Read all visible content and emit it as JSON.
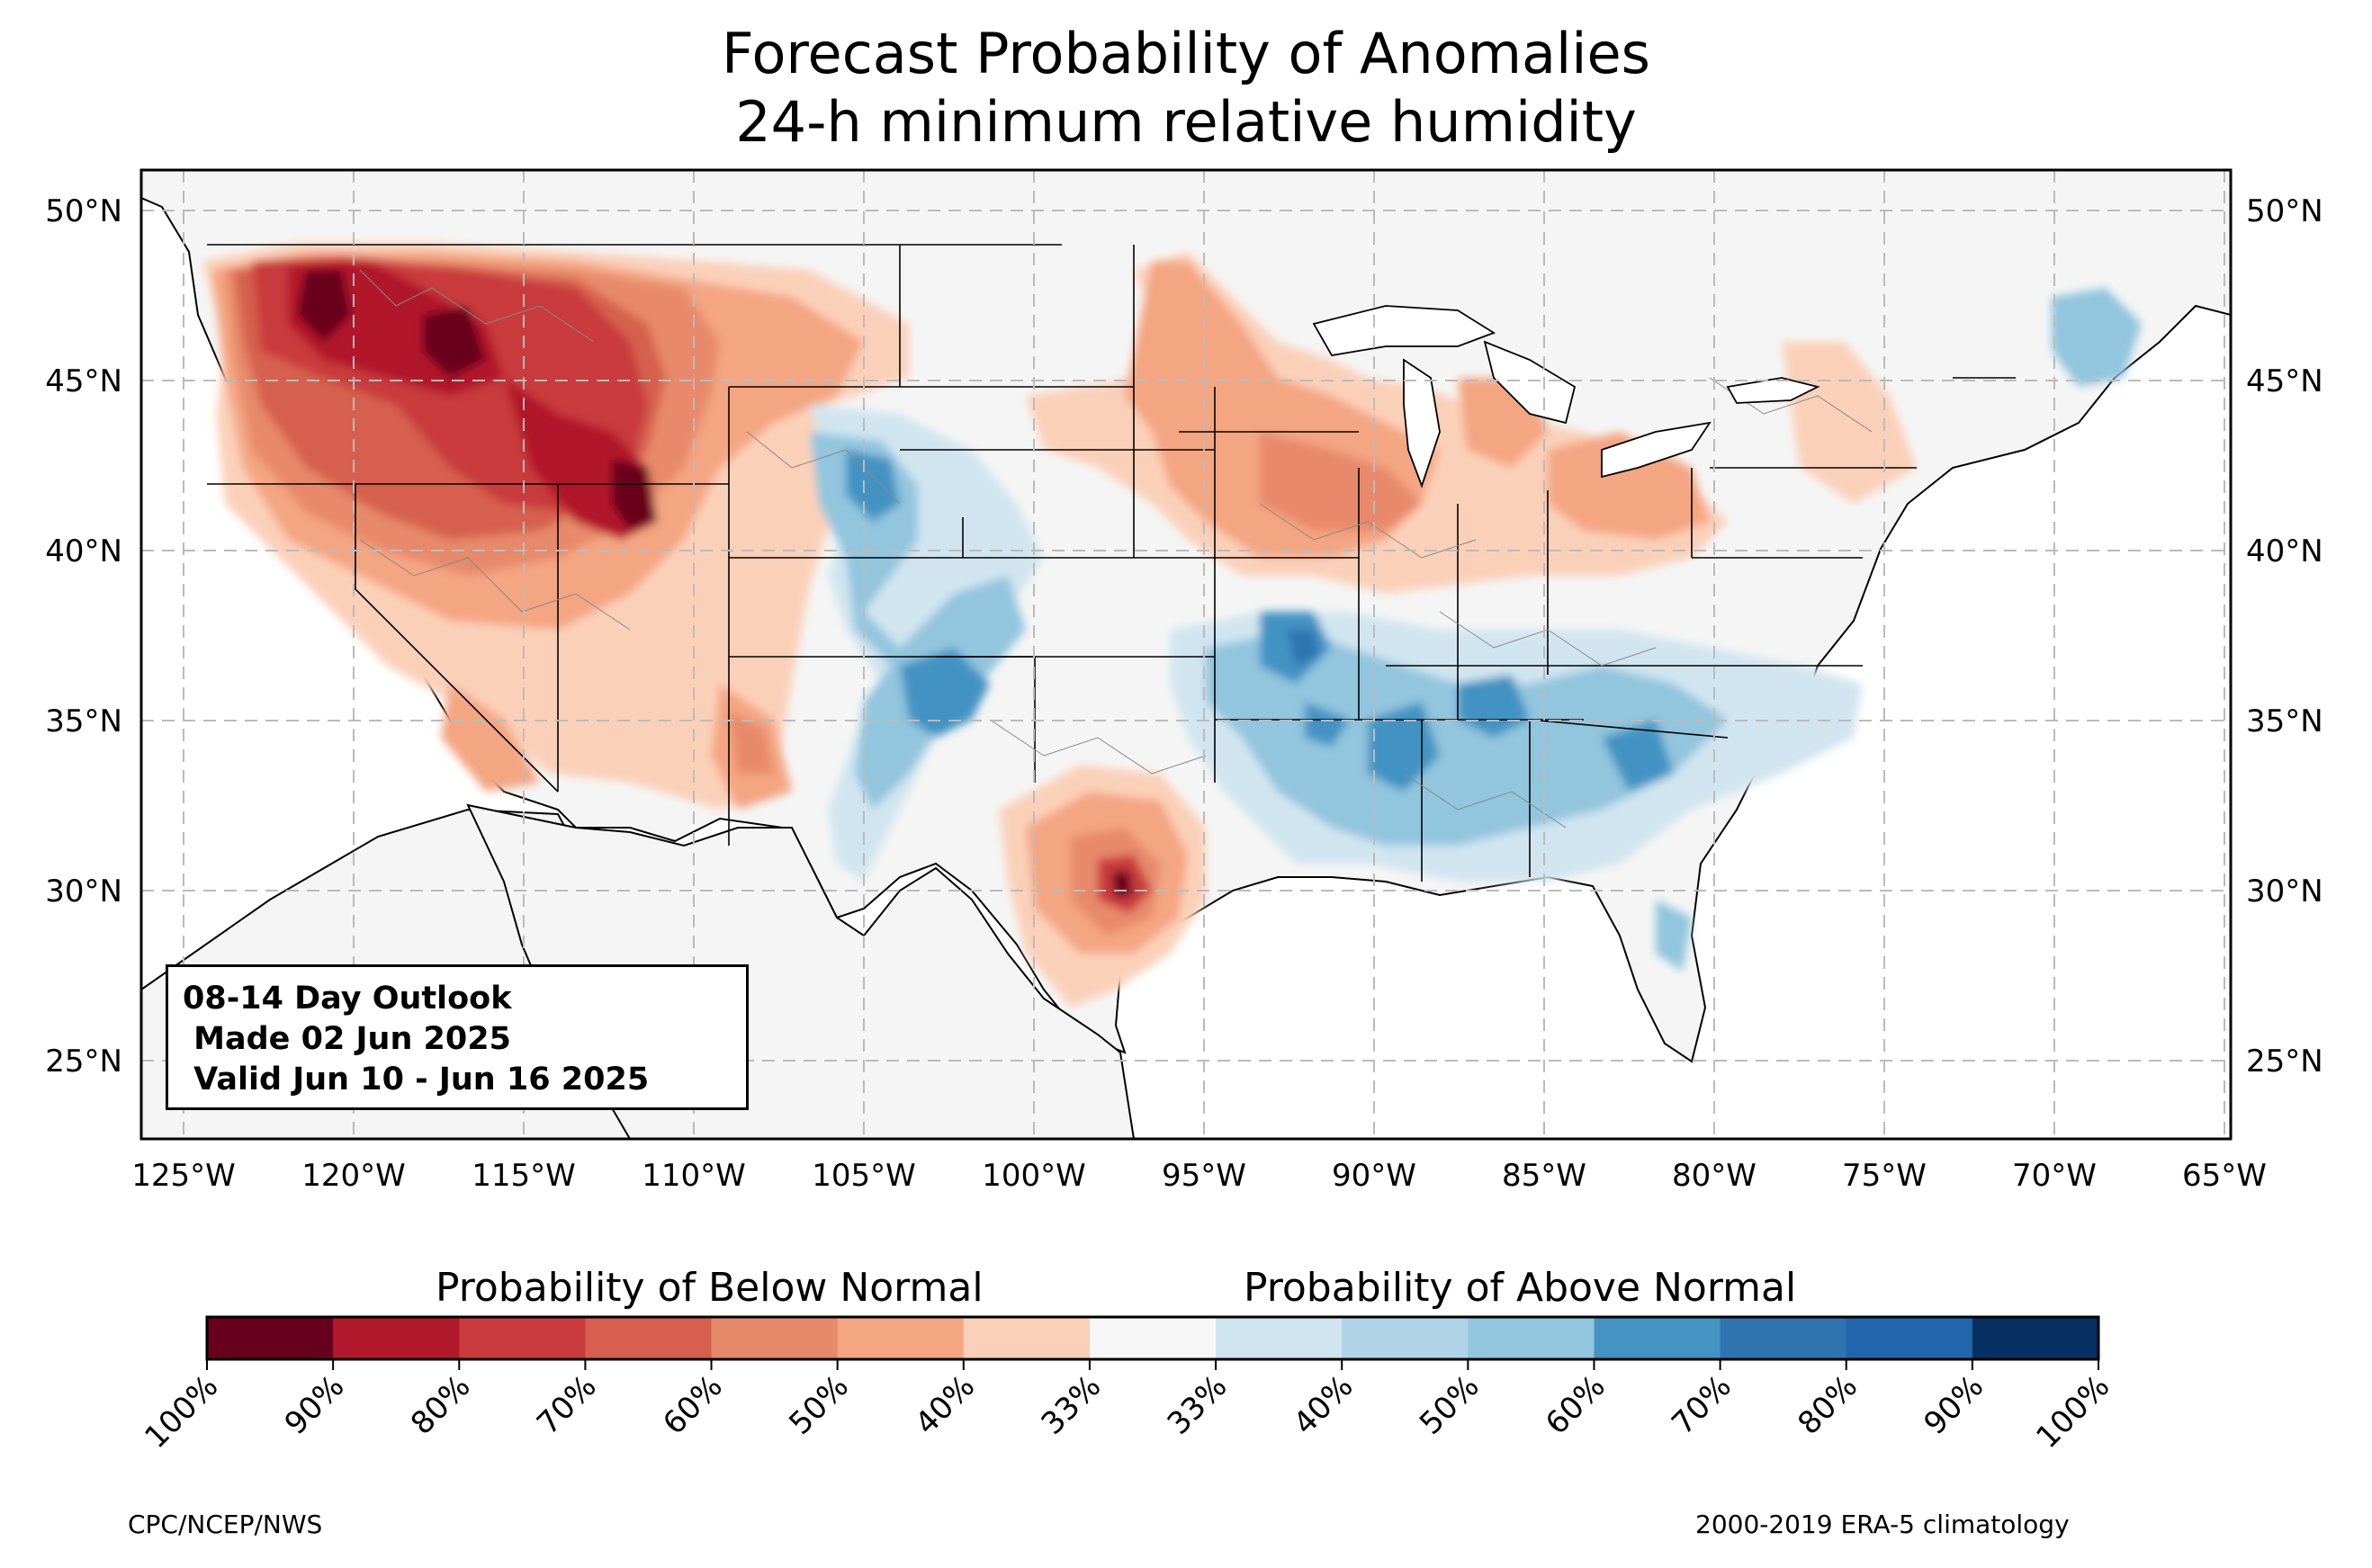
{
  "title": {
    "line1": "Forecast Probability of Anomalies",
    "line2": "24-h minimum relative humidity"
  },
  "map": {
    "region": "Contiguous United States",
    "lat_ticks": [
      "50°N",
      "45°N",
      "40°N",
      "35°N",
      "30°N",
      "25°N"
    ],
    "lon_ticks": [
      "125°W",
      "120°W",
      "115°W",
      "110°W",
      "105°W",
      "100°W",
      "95°W",
      "90°W",
      "85°W",
      "80°W",
      "75°W",
      "70°W",
      "65°W"
    ],
    "land_color": "#f5f5f5",
    "water_color": "#ffffff",
    "gridlines": true
  },
  "outlook": {
    "line1": "08-14 Day Outlook",
    "line2": " Made 02 Jun 2025",
    "line3": " Valid Jun 10 - Jun 16 2025"
  },
  "colorbar": {
    "below_label": "Probability of Below Normal",
    "above_label": "Probability of Above Normal",
    "ticks": [
      "100%",
      "90%",
      "80%",
      "70%",
      "60%",
      "50%",
      "40%",
      "33%",
      "33%",
      "40%",
      "50%",
      "60%",
      "70%",
      "80%",
      "90%",
      "100%"
    ],
    "colors": [
      "#67001f",
      "#b2182b",
      "#c93a3c",
      "#d6604d",
      "#e7896b",
      "#f4a582",
      "#fbd0b9",
      "#f7f7f7",
      "#d1e5f0",
      "#b0d3e7",
      "#92c5de",
      "#4393c3",
      "#2f74b1",
      "#2166ac",
      "#053061"
    ]
  },
  "footer": {
    "left": "CPC/NCEP/NWS",
    "right": "2000-2019 ERA-5 climatology"
  }
}
